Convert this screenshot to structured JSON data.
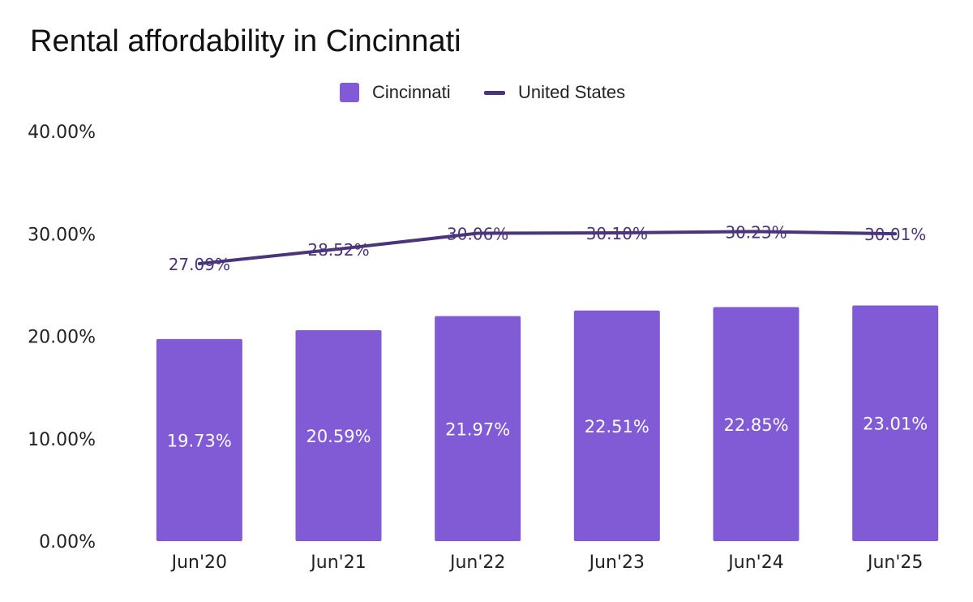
{
  "chart_data": {
    "type": "bar",
    "title": "Rental affordability in Cincinnati",
    "categories": [
      "Jun'20",
      "Jun'21",
      "Jun'22",
      "Jun'23",
      "Jun'24",
      "Jun'25"
    ],
    "series": [
      {
        "name": "Cincinnati",
        "kind": "bar",
        "color": "#815ad6",
        "values": [
          19.73,
          20.59,
          21.97,
          22.51,
          22.85,
          23.01
        ],
        "labels": [
          "19.73%",
          "20.59%",
          "21.97%",
          "22.51%",
          "22.85%",
          "23.01%"
        ]
      },
      {
        "name": "United States",
        "kind": "line",
        "color": "#4a357a",
        "values": [
          27.09,
          28.52,
          30.06,
          30.1,
          30.23,
          30.01
        ],
        "labels": [
          "27.09%",
          "28.52%",
          "30.06%",
          "30.10%",
          "30.23%",
          "30.01%"
        ]
      }
    ],
    "y_ticks": [
      "0.00%",
      "10.00%",
      "20.00%",
      "30.00%",
      "40.00%"
    ],
    "ylim": [
      0,
      40
    ],
    "grid": false,
    "legend_position": "top-center"
  }
}
